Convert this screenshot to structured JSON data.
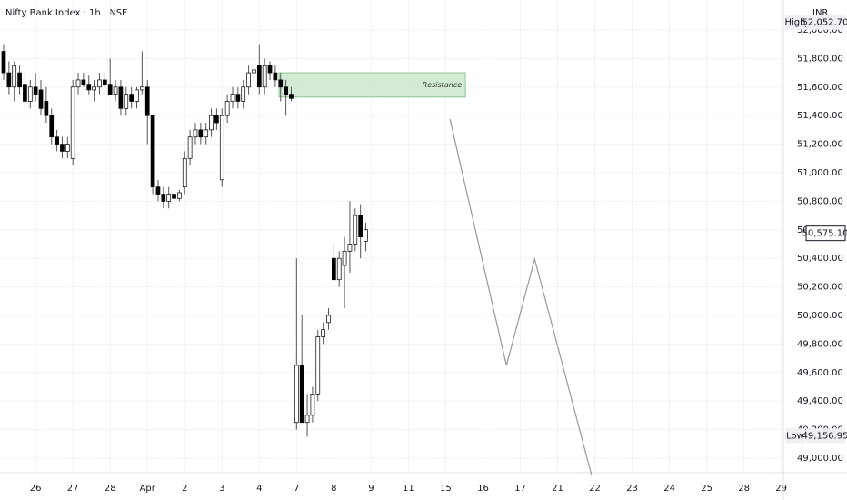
{
  "chart_data": {
    "type": "candlestick",
    "title": "Nifty Bank Index · 1h · NSE",
    "currency": "INR",
    "x": [
      0,
      1,
      2,
      3,
      4,
      5,
      6,
      7,
      8,
      9,
      10,
      11,
      12,
      13,
      14,
      15,
      16,
      17,
      18,
      19,
      20,
      21,
      22,
      23,
      24,
      25,
      26,
      27,
      28,
      29,
      30,
      31,
      32,
      33,
      34,
      35,
      36,
      37,
      38,
      39,
      40,
      41,
      42,
      43,
      44,
      45,
      46,
      47,
      48,
      49,
      50,
      51,
      52,
      53,
      54,
      55,
      56,
      57,
      58,
      59,
      60,
      61,
      62,
      63,
      64,
      65,
      66,
      67,
      68
    ],
    "open": [
      51850,
      51700,
      51600,
      51700,
      51620,
      51500,
      51600,
      51580,
      51500,
      51400,
      51250,
      51200,
      51150,
      51100,
      51600,
      51650,
      51620,
      51580,
      51600,
      51650,
      51620,
      51550,
      51600,
      51450,
      51550,
      51500,
      51580,
      51600,
      51400,
      50900,
      50850,
      50800,
      50850,
      50820,
      50900,
      51100,
      51250,
      51300,
      51250,
      51300,
      51400,
      50950,
      51400,
      51500,
      51550,
      51500,
      51600,
      51700,
      51750,
      51600,
      51750,
      51700,
      51650,
      51600,
      51550,
      49250,
      49650,
      49250,
      49300,
      49450,
      49850,
      49950,
      50400,
      50250,
      50350,
      50450,
      50500,
      50700,
      50520
    ],
    "high": [
      51900,
      51780,
      51780,
      51750,
      51700,
      51650,
      51700,
      51650,
      51600,
      51450,
      51300,
      51250,
      51250,
      51650,
      51700,
      51700,
      51680,
      51650,
      51700,
      51700,
      51800,
      51650,
      51650,
      51600,
      51600,
      51600,
      51850,
      51650,
      51400,
      50950,
      50900,
      50900,
      50900,
      50880,
      51150,
      51300,
      51350,
      51350,
      51350,
      51450,
      51450,
      51450,
      51550,
      51600,
      51600,
      51650,
      51750,
      51750,
      51900,
      51800,
      51780,
      51750,
      51700,
      51650,
      51600,
      50400,
      50000,
      49450,
      49500,
      49900,
      49950,
      50050,
      50500,
      50450,
      50550,
      50800,
      50750,
      50780,
      50650
    ],
    "low": [
      51650,
      51550,
      51500,
      51550,
      51450,
      51450,
      51500,
      51400,
      51350,
      51200,
      51150,
      51100,
      51100,
      51050,
      51550,
      51600,
      51550,
      51500,
      51550,
      51600,
      51550,
      51500,
      51400,
      51400,
      51450,
      51450,
      51550,
      51200,
      50850,
      50800,
      50750,
      50750,
      50780,
      50800,
      50850,
      51050,
      51200,
      51200,
      51200,
      51250,
      51300,
      50900,
      51350,
      51450,
      51450,
      51450,
      51550,
      51650,
      51550,
      51550,
      51650,
      51600,
      51500,
      51400,
      51500,
      49200,
      49250,
      49150,
      49250,
      49400,
      49800,
      49900,
      50250,
      50200,
      50050,
      50300,
      50450,
      50400,
      50450
    ],
    "close": [
      51700,
      51600,
      51750,
      51600,
      51500,
      51600,
      51550,
      51450,
      51400,
      51250,
      51200,
      51150,
      51200,
      51600,
      51650,
      51620,
      51580,
      51600,
      51650,
      51620,
      51550,
      51600,
      51450,
      51550,
      51500,
      51580,
      51600,
      51400,
      50900,
      50850,
      50800,
      50850,
      50820,
      50860,
      51100,
      51250,
      51300,
      51250,
      51300,
      51400,
      51350,
      51400,
      51500,
      51550,
      51500,
      51600,
      51700,
      51720,
      51600,
      51750,
      51700,
      51650,
      51600,
      51550,
      51520,
      49650,
      49250,
      49300,
      49450,
      49850,
      49900,
      50000,
      50250,
      50400,
      50450,
      50500,
      50700,
      50550,
      50600
    ],
    "up_color": "#ffffff",
    "down_color": "#000000",
    "wick_color": "#555555",
    "xlim": [
      -0.68,
      146.4
    ],
    "xticks": [
      {
        "value": 6,
        "label": "26"
      },
      {
        "value": 13,
        "label": "27"
      },
      {
        "value": 20,
        "label": "28"
      },
      {
        "value": 27,
        "label": "Apr"
      },
      {
        "value": 34,
        "label": "2"
      },
      {
        "value": 41,
        "label": "3"
      },
      {
        "value": 48,
        "label": "4"
      },
      {
        "value": 55,
        "label": "7"
      },
      {
        "value": 62,
        "label": "8"
      },
      {
        "value": 69,
        "label": "9"
      },
      {
        "value": 76,
        "label": "11"
      },
      {
        "value": 83,
        "label": "15"
      },
      {
        "value": 90,
        "label": "16"
      },
      {
        "value": 97,
        "label": "17"
      },
      {
        "value": 104,
        "label": "21"
      },
      {
        "value": 111,
        "label": "22"
      },
      {
        "value": 118,
        "label": "23"
      },
      {
        "value": 125,
        "label": "24"
      },
      {
        "value": 132,
        "label": "25"
      },
      {
        "value": 139,
        "label": "28"
      },
      {
        "value": 146,
        "label": "29"
      }
    ],
    "ylim": [
      48898,
      52210
    ],
    "yticks": [
      {
        "value": 49000,
        "label": "49,000.00"
      },
      {
        "value": 49200,
        "label": "49,200.00"
      },
      {
        "value": 49400,
        "label": "49,400.00"
      },
      {
        "value": 49600,
        "label": "49,600.00"
      },
      {
        "value": 49800,
        "label": "49,800.00"
      },
      {
        "value": 50000,
        "label": "50,000.00"
      },
      {
        "value": 50200,
        "label": "50,200.00"
      },
      {
        "value": 50400,
        "label": "50,400.00"
      },
      {
        "value": 50600,
        "label": "50,600.00"
      },
      {
        "value": 50800,
        "label": "50,800.00"
      },
      {
        "value": 51000,
        "label": "51,000.00"
      },
      {
        "value": 51200,
        "label": "51,200.00"
      },
      {
        "value": 51400,
        "label": "51,400.00"
      },
      {
        "value": 51600,
        "label": "51,600.00"
      },
      {
        "value": 51800,
        "label": "51,800.00"
      },
      {
        "value": 52000,
        "label": "52,000.00"
      }
    ],
    "grid": true,
    "resistance": {
      "label": "Resistance",
      "low": 51530,
      "high": 51700,
      "x_start": 51.7,
      "x_end": 86.7,
      "color": "#c8e6c9"
    },
    "projection": {
      "x": [
        83.8,
        94.4,
        99.7,
        110.4
      ],
      "values": [
        51376,
        49650,
        50395,
        48879
      ],
      "color": "#999999"
    },
    "high_marker": {
      "label": "High",
      "value": 52052.7,
      "value_label": "52,052.70"
    },
    "low_marker": {
      "label": "Low",
      "value": 49156.95,
      "value_label": "49,156.95"
    },
    "last_price": {
      "value": 50575.1,
      "value_label": "50,575.10"
    }
  }
}
